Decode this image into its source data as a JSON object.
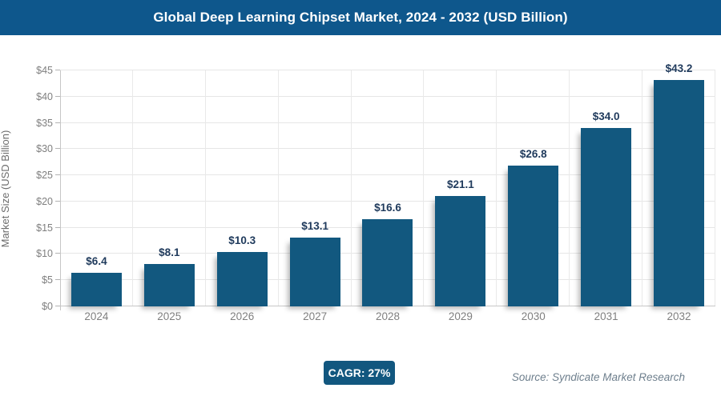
{
  "header": {
    "title": "Global Deep Learning Chipset Market, 2024 - 2032 (USD Billion)"
  },
  "chart_data": {
    "type": "bar",
    "title": "Global Deep Learning Chipset Market, 2024 - 2032 (USD Billion)",
    "categories": [
      "2024",
      "2025",
      "2026",
      "2027",
      "2028",
      "2029",
      "2030",
      "2031",
      "2032"
    ],
    "values": [
      6.4,
      8.1,
      10.3,
      13.1,
      16.6,
      21.1,
      26.8,
      34.0,
      43.2
    ],
    "data_labels": [
      "$6.4",
      "$8.1",
      "$10.3",
      "$13.1",
      "$16.6",
      "$21.1",
      "$26.8",
      "$34.0",
      "$43.2"
    ],
    "xlabel": "",
    "ylabel": "Market Size (USD Billion)",
    "ylim": [
      0,
      45
    ],
    "ytick_step": 5,
    "ytick_labels": [
      "$0",
      "$5",
      "$10",
      "$15",
      "$20",
      "$25",
      "$30",
      "$35",
      "$40",
      "$45"
    ],
    "grid": true,
    "legend": false,
    "annotation": "CAGR: 27%"
  },
  "footer": {
    "cagr_label": "CAGR: 27%",
    "source": "Source: Syndicate Market Research"
  },
  "colors": {
    "header_bg": "#0e578c",
    "bar": "#12587f",
    "data_label": "#1f3a5c",
    "axis_text": "#7f7f7f",
    "grid_line": "#e6e6e6",
    "axis_line": "#c6c6c6",
    "badge_bg": "#12577f",
    "source_text": "#6e7f8d"
  }
}
